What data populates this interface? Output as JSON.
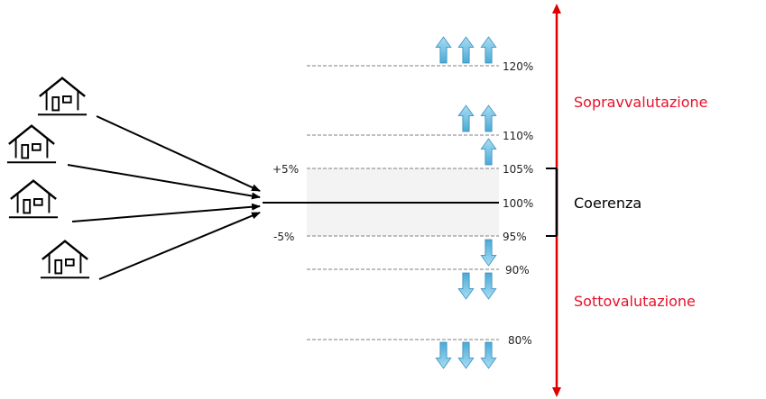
{
  "levels": {
    "l120": "120%",
    "l110": "110%",
    "l105": "105%",
    "l100": "100%",
    "l95": "95%",
    "l90": "90%",
    "l80": "80%"
  },
  "offsets": {
    "plus": "+5%",
    "minus": "-5%"
  },
  "zones": {
    "over": "Sopravvalutazione",
    "coherence": "Coerenza",
    "under": "Sottovalutazione"
  },
  "colors": {
    "red_axis": "#e00000",
    "red_text": "#e8102a",
    "arrow_up": "#6cc3e6",
    "arrow_down": "#6cc3e6",
    "band": "#f3f3f3",
    "dashed": "#999999"
  },
  "icons": {
    "house": "house-icon",
    "arrow_up": "arrow-up-icon",
    "arrow_down": "arrow-down-icon"
  }
}
